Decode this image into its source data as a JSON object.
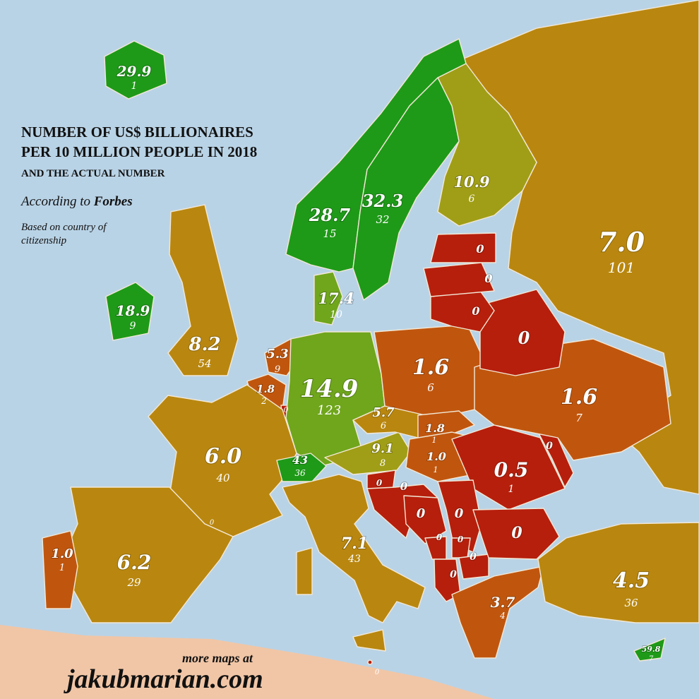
{
  "title": {
    "line1": "NUMBER OF US$ BILLIONAIRES",
    "line2": "PER 10 MILLION PEOPLE IN 2018",
    "line3": "AND THE ACTUAL NUMBER"
  },
  "source": {
    "prefix": "According to ",
    "name": "Forbes"
  },
  "note": "Based on country of citizenship",
  "footer": {
    "more": "more maps at",
    "site": "jakubmarian.com"
  },
  "colors": {
    "sea": "#b9d3e6",
    "africa": "#f1c6a6",
    "high_green": "#1e9a18",
    "green": "#6fa61c",
    "yellow_green": "#a09e16",
    "ochre": "#b9870f",
    "orange": "#c0560e",
    "red": "#b61f0c"
  },
  "countries": {
    "iceland": {
      "rate": "29.9",
      "count": "1"
    },
    "norway": {
      "rate": "28.7",
      "count": "15"
    },
    "sweden": {
      "rate": "32.3",
      "count": "32"
    },
    "finland": {
      "rate": "10.9",
      "count": "6"
    },
    "russia": {
      "rate": "7.0",
      "count": "101"
    },
    "estonia": {
      "rate": "0"
    },
    "latvia": {
      "rate": "0"
    },
    "lithuania": {
      "rate": "0"
    },
    "belarus": {
      "rate": "0"
    },
    "denmark": {
      "rate": "17.4",
      "count": "10"
    },
    "ireland": {
      "rate": "18.9",
      "count": "9"
    },
    "uk": {
      "rate": "8.2",
      "count": "54"
    },
    "netherlands": {
      "rate": "5.3",
      "count": "9"
    },
    "belgium": {
      "rate": "1.8",
      "count": "2"
    },
    "luxembourg": {
      "rate": "0"
    },
    "germany": {
      "rate": "14.9",
      "count": "123"
    },
    "poland": {
      "rate": "1.6",
      "count": "6"
    },
    "ukraine": {
      "rate": "1.6",
      "count": "7"
    },
    "czechia": {
      "rate": "5.7",
      "count": "6"
    },
    "slovakia": {
      "rate": "1.8",
      "count": "1"
    },
    "austria": {
      "rate": "9.1",
      "count": "8"
    },
    "hungary": {
      "rate": "1.0",
      "count": "1"
    },
    "switzerland": {
      "rate": "43",
      "count": "36"
    },
    "france": {
      "rate": "6.0",
      "count": "40"
    },
    "monaco": {
      "rate": "0"
    },
    "romania": {
      "rate": "0.5",
      "count": "1"
    },
    "moldova": {
      "rate": "0"
    },
    "slovenia": {
      "rate": "0"
    },
    "croatia": {
      "rate": "0"
    },
    "bosnia": {
      "rate": "0"
    },
    "serbia": {
      "rate": "0"
    },
    "montenegro": {
      "rate": "0"
    },
    "kosovo": {
      "rate": "0"
    },
    "north_macedonia": {
      "rate": "0"
    },
    "albania": {
      "rate": "0"
    },
    "bulgaria": {
      "rate": "0"
    },
    "greece": {
      "rate": "3.7",
      "count": "4"
    },
    "turkey": {
      "rate": "4.5",
      "count": "36"
    },
    "cyprus": {
      "rate": "59.8",
      "count": "7"
    },
    "italy": {
      "rate": "7.1",
      "count": "43"
    },
    "malta": {
      "rate": "0"
    },
    "spain": {
      "rate": "6.2",
      "count": "29"
    },
    "portugal": {
      "rate": "1.0",
      "count": "1"
    }
  }
}
